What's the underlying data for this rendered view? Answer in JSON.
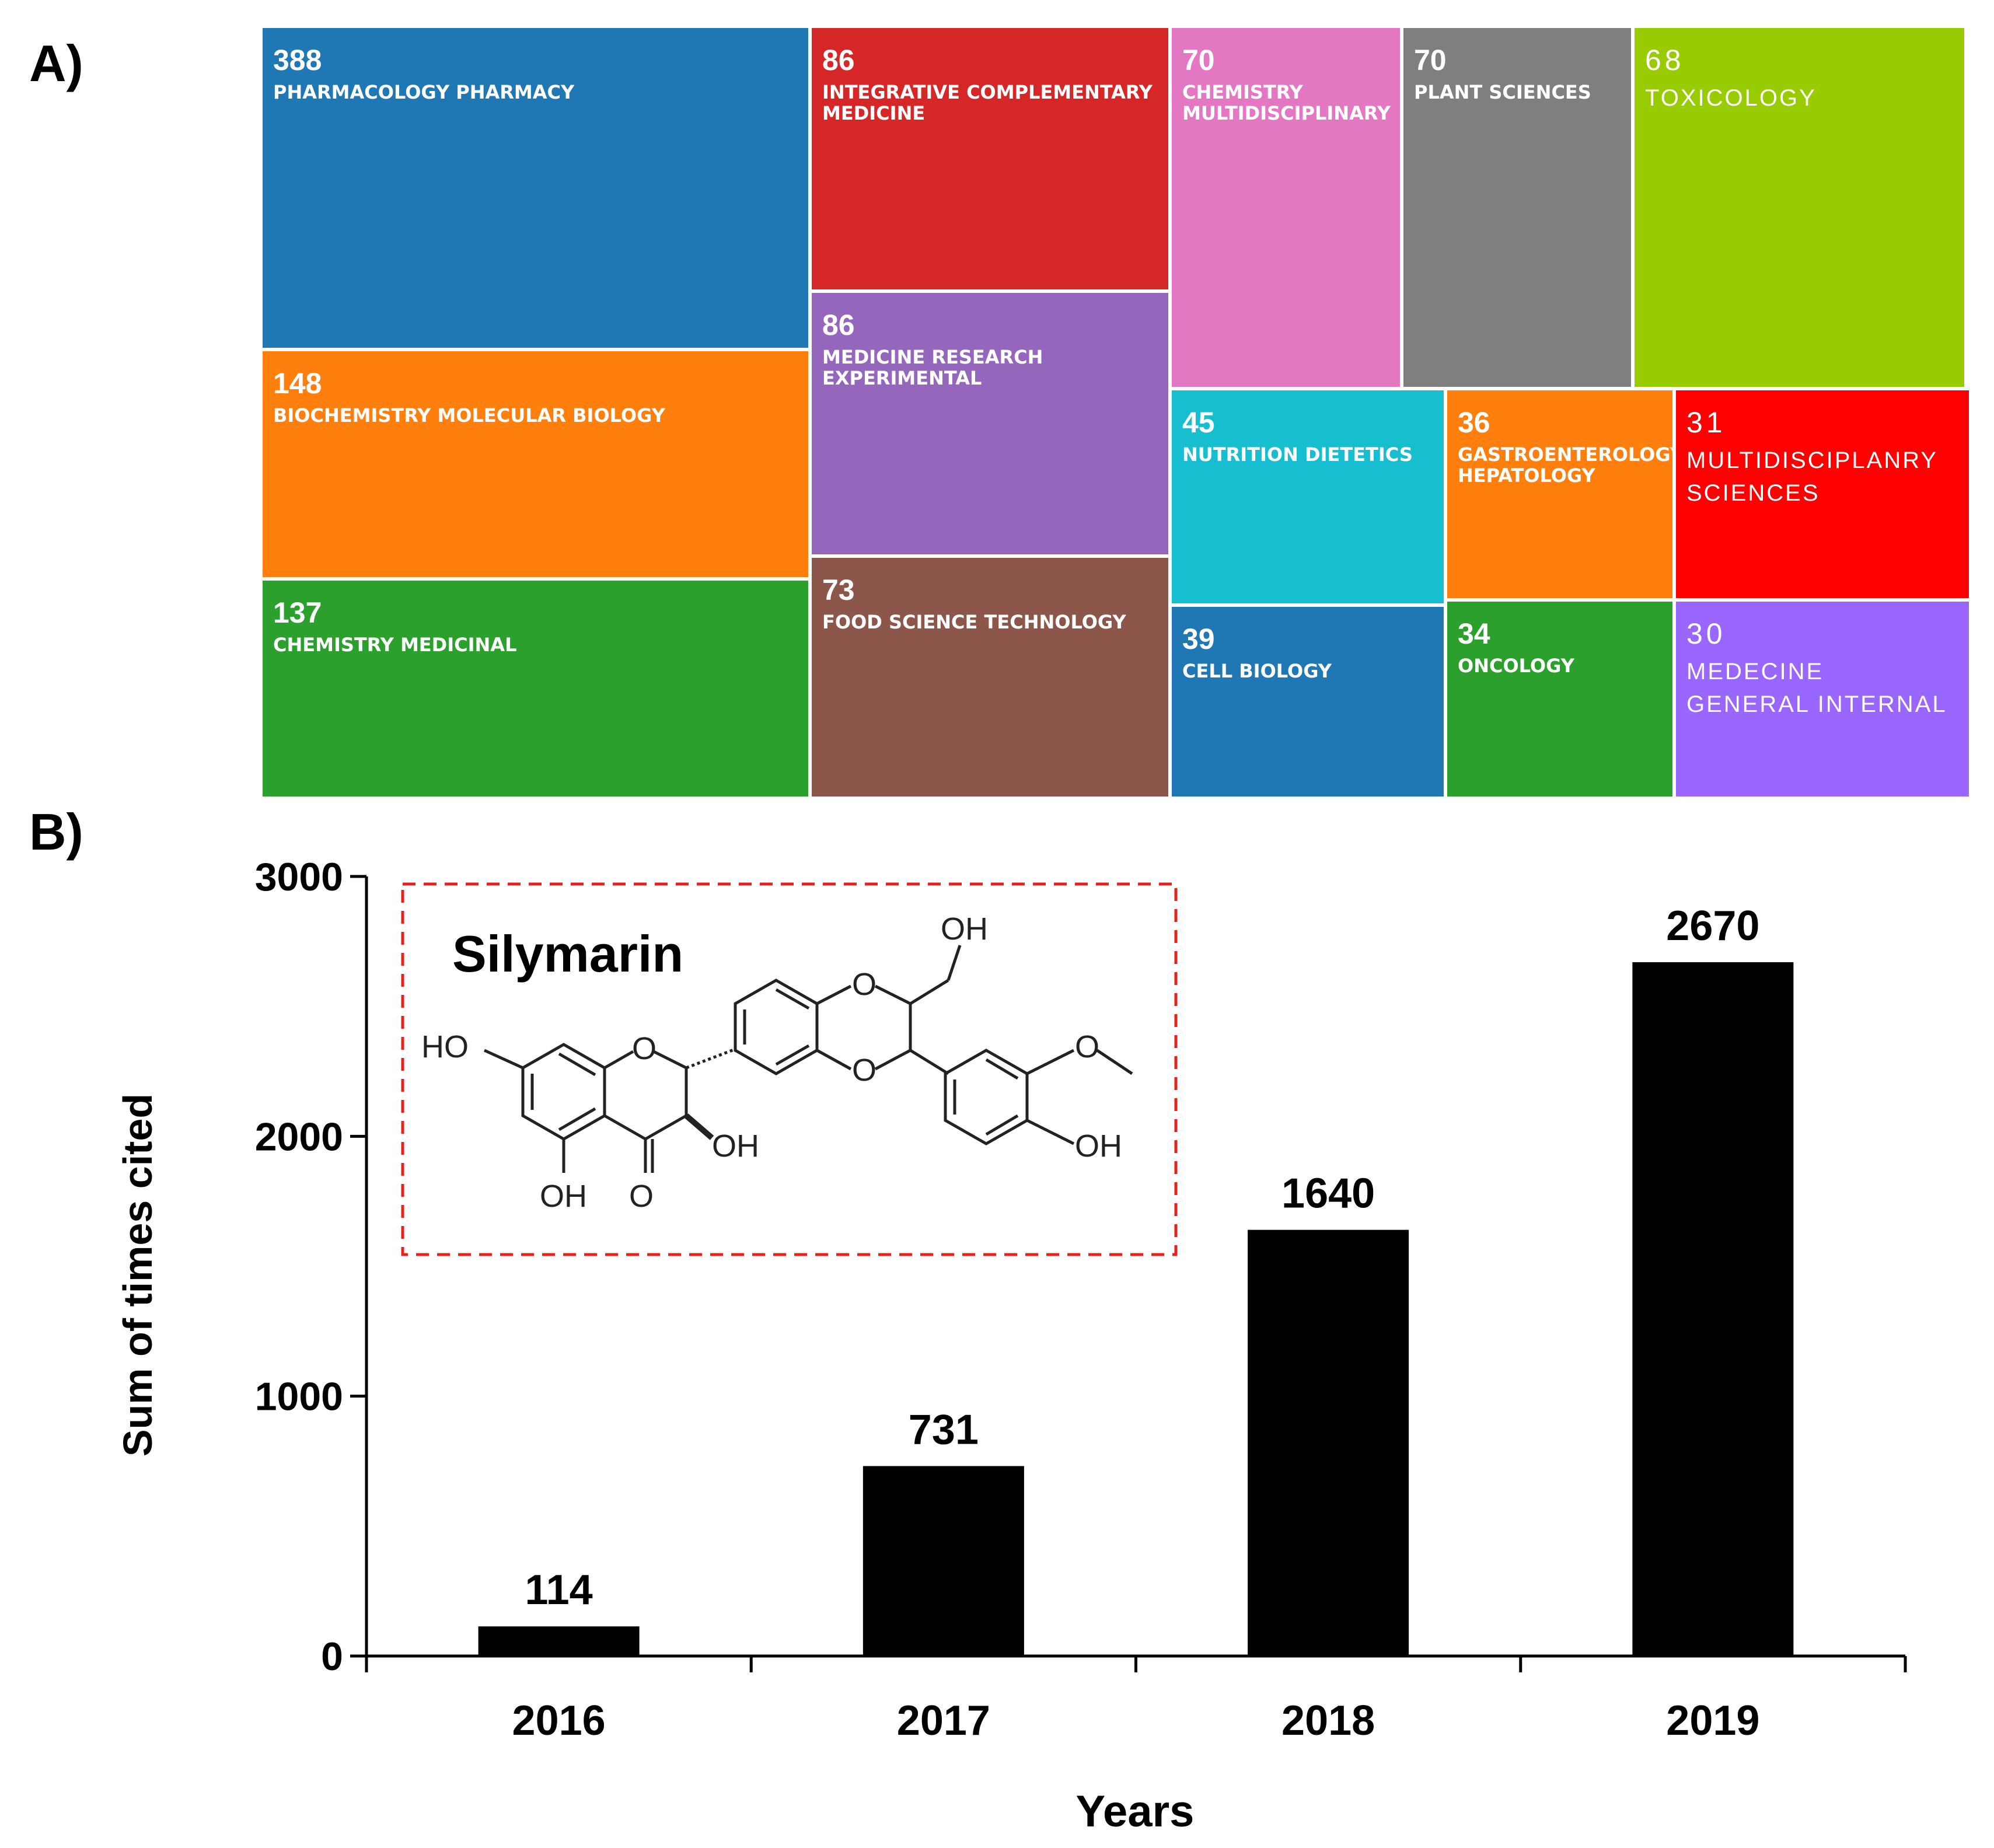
{
  "panels": {
    "a": "A)",
    "b": "B)"
  },
  "treemap": {
    "tiles": [
      {
        "count": "388",
        "name": "PHARMACOLOGY PHARMACY",
        "color": "#1f77b4"
      },
      {
        "count": "148",
        "name": "BIOCHEMISTRY MOLECULAR BIOLOGY",
        "color": "#ff7f0e"
      },
      {
        "count": "137",
        "name": "CHEMISTRY MEDICINAL",
        "color": "#2ca02c"
      },
      {
        "count": "86",
        "name": "INTEGRATIVE COMPLEMENTARY\nMEDICINE",
        "color": "#d62728"
      },
      {
        "count": "86",
        "name": "MEDICINE RESEARCH\nEXPERIMENTAL",
        "color": "#9467bd"
      },
      {
        "count": "73",
        "name": "FOOD SCIENCE TECHNOLOGY",
        "color": "#8c564b"
      },
      {
        "count": "70",
        "name": "CHEMISTRY\nMULTIDISCIPLINARY",
        "color": "#e377c2"
      },
      {
        "count": "70",
        "name": "PLANT SCIENCES",
        "color": "#7f7f7f"
      },
      {
        "count": "68",
        "name": "TOXICOLOGY",
        "color": "#99cc00"
      },
      {
        "count": "45",
        "name": "NUTRITION DIETETICS",
        "color": "#17becf"
      },
      {
        "count": "36",
        "name": "GASTROENTEROLOGY\nHEPATOLOGY",
        "color": "#ff7f0e"
      },
      {
        "count": "31",
        "name": "MULTIDISCIPLANRY\nSCIENCES",
        "color": "#ff0000"
      },
      {
        "count": "39",
        "name": "CELL BIOLOGY",
        "color": "#1f77b4"
      },
      {
        "count": "34",
        "name": "ONCOLOGY",
        "color": "#2ca02c"
      },
      {
        "count": "30",
        "name": "MEDECINE\nGENERAL INTERNAL",
        "color": "#9966ff"
      }
    ]
  },
  "inset": {
    "title": "Silymarin",
    "labels": {
      "ho": "HO",
      "oh": "OH",
      "o": "O"
    }
  },
  "chart_data": {
    "type": "bar",
    "categories": [
      "2016",
      "2017",
      "2018",
      "2019"
    ],
    "values": [
      114,
      731,
      1640,
      2670
    ],
    "value_labels": [
      "114",
      "731",
      "1640",
      "2670"
    ],
    "xlabel": "Years",
    "ylabel": "Sum of times cited",
    "ylim": [
      0,
      3000
    ],
    "yticks": [
      0,
      1000,
      2000,
      3000
    ],
    "ytick_labels": [
      "0",
      "1000",
      "2000",
      "3000"
    ],
    "bar_color": "#000000"
  }
}
